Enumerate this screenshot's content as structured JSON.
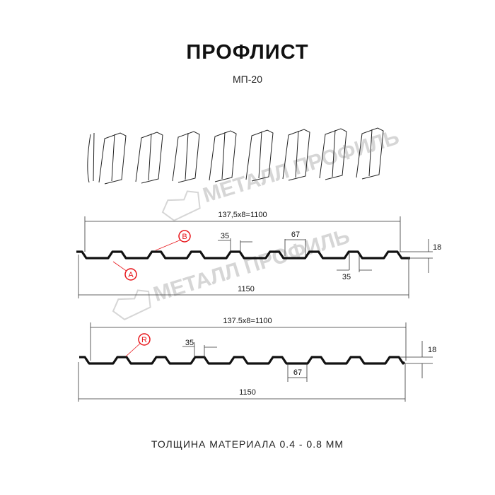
{
  "header": {
    "title": "ПРОФЛИСТ",
    "subtitle": "МП-20"
  },
  "watermark": "МЕТАЛЛ ПРОФИЛЬ",
  "profile_top": {
    "pitch_label": "137,5x8=1100",
    "width_label": "1150",
    "rib_top_label": "35",
    "rib_bottom_label": "35",
    "rib_width_label": "67",
    "height_label": "18",
    "marker_a": "A",
    "marker_b": "B"
  },
  "profile_bottom": {
    "pitch_label": "137.5x8=1100",
    "width_label": "1150",
    "rib_top_label": "35",
    "rib_width_label": "67",
    "height_label": "18",
    "marker_r": "R"
  },
  "footer": {
    "thickness": "ТОЛЩИНА МАТЕРИАЛА 0.4 - 0.8 ММ"
  },
  "colors": {
    "marker": "#e8161b",
    "line": "#111111",
    "watermark": "#d6d6d6"
  }
}
